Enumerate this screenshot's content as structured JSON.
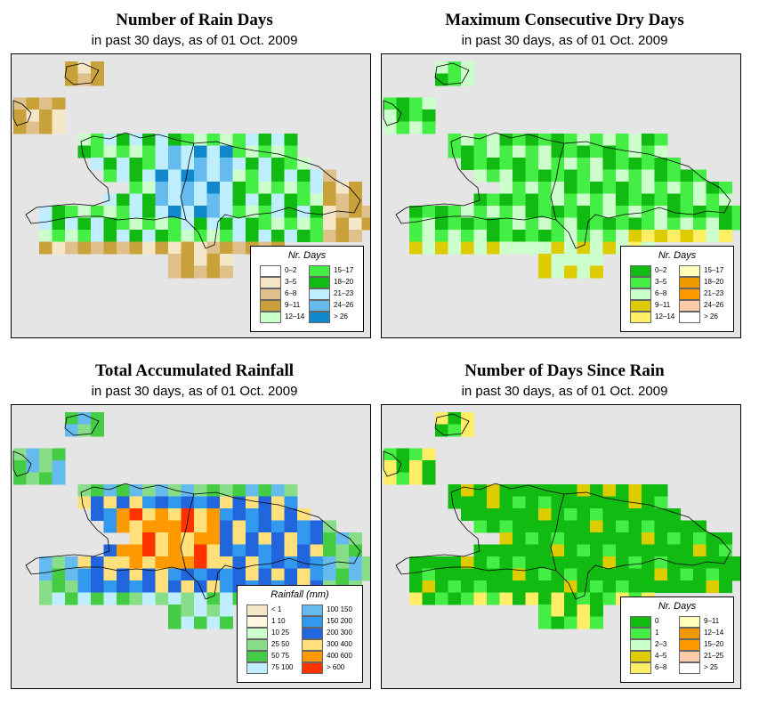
{
  "panels": [
    {
      "id": "rain-days",
      "title": "Number of Rain Days",
      "subtitle": "in past 30 days, as of  01 Oct. 2009",
      "legend_title": "Nr. Days",
      "legend": [
        {
          "label": "0–2",
          "color": "#ffffff"
        },
        {
          "label": "3–5",
          "color": "#f5e6c8"
        },
        {
          "label": "6–8",
          "color": "#dfc08a"
        },
        {
          "label": "9–11",
          "color": "#c9a13a"
        },
        {
          "label": "12–14",
          "color": "#ccffcc"
        },
        {
          "label": "15–17",
          "color": "#44ee44"
        },
        {
          "label": "18–20",
          "color": "#11bb11"
        },
        {
          "label": "21–23",
          "color": "#bfeeff"
        },
        {
          "label": "24–26",
          "color": "#66bbee"
        },
        {
          "label": "> 26",
          "color": "#1188cc"
        }
      ]
    },
    {
      "id": "dry-days",
      "title": "Maximum Consecutive Dry Days",
      "subtitle": "in past 30 days, as of  01 Oct. 2009",
      "legend_title": "Nr. Days",
      "legend": [
        {
          "label": "0–2",
          "color": "#11bb11"
        },
        {
          "label": "3–5",
          "color": "#44ee44"
        },
        {
          "label": "6–8",
          "color": "#ccffcc"
        },
        {
          "label": "9–11",
          "color": "#ddcc00"
        },
        {
          "label": "12–14",
          "color": "#ffee66"
        },
        {
          "label": "15–17",
          "color": "#ffffbb"
        },
        {
          "label": "18–20",
          "color": "#ee9900"
        },
        {
          "label": "21–23",
          "color": "#ff9900"
        },
        {
          "label": "24–26",
          "color": "#ffccaa"
        },
        {
          "label": "> 26",
          "color": "#ffffff"
        }
      ]
    },
    {
      "id": "rainfall",
      "title": "Total Accumulated Rainfall",
      "subtitle": "in past 30 days, as of  01 Oct. 2009",
      "legend_title": "Rainfall (mm)",
      "legend": [
        {
          "label": "< 1",
          "color": "#f5e6c8"
        },
        {
          "label": "1     10",
          "color": "#fff7e0"
        },
        {
          "label": "10    25",
          "color": "#ccffcc"
        },
        {
          "label": "25    50",
          "color": "#88dd88"
        },
        {
          "label": "50    75",
          "color": "#44cc44"
        },
        {
          "label": "75   100",
          "color": "#bfeeff"
        },
        {
          "label": "100  150",
          "color": "#66bbee"
        },
        {
          "label": "150  200",
          "color": "#3399ee"
        },
        {
          "label": "200  300",
          "color": "#2266dd"
        },
        {
          "label": "300  400",
          "color": "#ffe07a"
        },
        {
          "label": "400  600",
          "color": "#ff9900"
        },
        {
          "label": "> 600",
          "color": "#ff3300"
        }
      ]
    },
    {
      "id": "since-rain",
      "title": "Number of Days Since Rain",
      "subtitle": "in past 30 days, as of  01 Oct. 2009",
      "legend_title": "Nr. Days",
      "legend": [
        {
          "label": "0",
          "color": "#11bb11"
        },
        {
          "label": "1",
          "color": "#44ee44"
        },
        {
          "label": "2–3",
          "color": "#ccffcc"
        },
        {
          "label": "4–5",
          "color": "#ddcc00"
        },
        {
          "label": "6–8",
          "color": "#ffee66"
        },
        {
          "label": "9–11",
          "color": "#ffffbb"
        },
        {
          "label": "12–14",
          "color": "#ee9900"
        },
        {
          "label": "15–20",
          "color": "#ff9900"
        },
        {
          "label": "21–25",
          "color": "#ffccaa"
        },
        {
          "label": "> 25",
          "color": "#ffffff"
        }
      ]
    }
  ]
}
